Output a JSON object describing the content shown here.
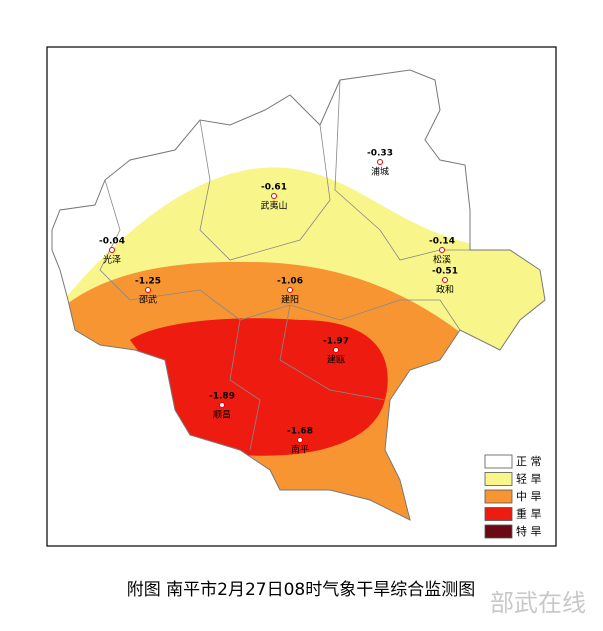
{
  "stations": [
    {
      "name": "浦城",
      "value": -0.33
    },
    {
      "name": "武夷山",
      "value": -0.61
    },
    {
      "name": "光泽",
      "value": -0.04
    },
    {
      "name": "松溪",
      "value": -0.14
    },
    {
      "name": "政和",
      "value": -0.51
    },
    {
      "name": "邵武",
      "value": -1.25
    },
    {
      "name": "建阳",
      "value": -1.06
    },
    {
      "name": "建瓯",
      "value": -1.97
    },
    {
      "name": "顺昌",
      "value": -1.89
    },
    {
      "name": "南平",
      "value": -1.68
    }
  ],
  "legend": [
    {
      "label": "正 常",
      "color": "#ffffff"
    },
    {
      "label": "轻 旱",
      "color": "#f8f58a"
    },
    {
      "label": "中 旱",
      "color": "#f79532"
    },
    {
      "label": "重 旱",
      "color": "#ee1c10"
    },
    {
      "label": "特 旱",
      "color": "#6b0a14"
    }
  ],
  "caption": "附图  南平市2月27日08时气象干旱综合监测图",
  "watermark": "部武在线"
}
